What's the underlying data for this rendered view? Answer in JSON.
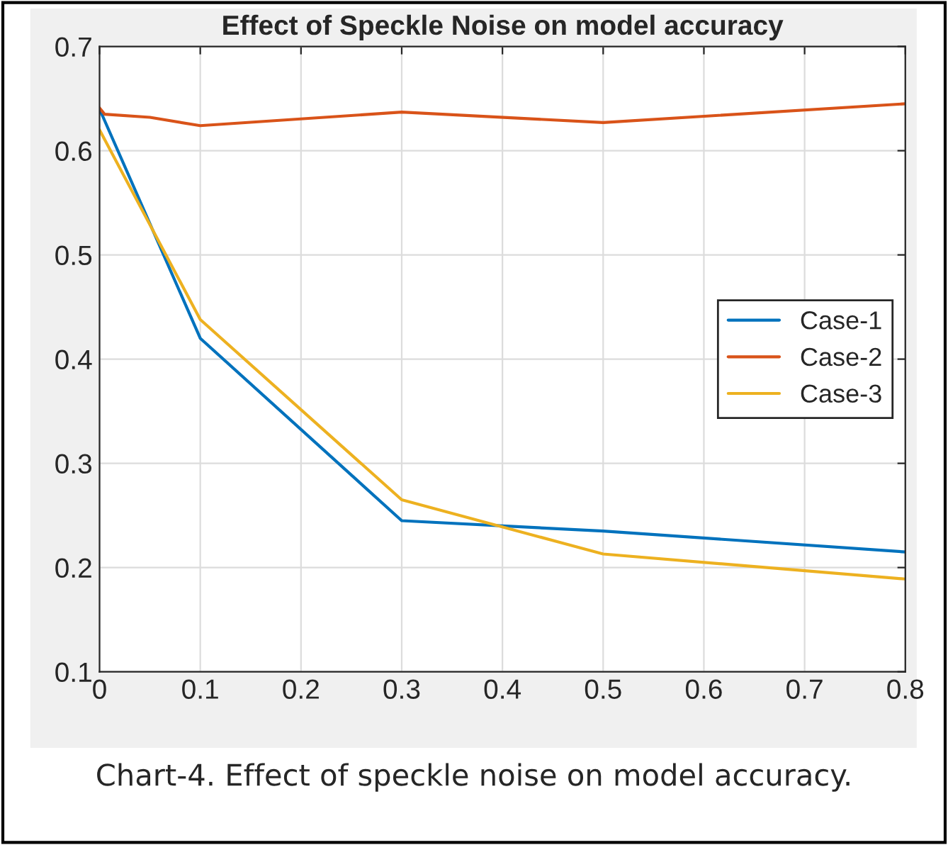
{
  "chart_data": {
    "type": "line",
    "title": "Effect of Speckle Noise on model accuracy",
    "xlim": [
      0,
      0.8
    ],
    "xticks": [
      0,
      0.1,
      0.2,
      0.3,
      0.4,
      0.5,
      0.6,
      0.7,
      0.8
    ],
    "ylim": [
      0.1,
      0.7
    ],
    "yticks": [
      0.1,
      0.2,
      0.3,
      0.4,
      0.5,
      0.6,
      0.7
    ],
    "grid": true,
    "legend": "right",
    "series": [
      {
        "name": "Case-1",
        "color": "#0072bd",
        "x": [
          0,
          0.1,
          0.3,
          0.5,
          0.8
        ],
        "values": [
          0.64,
          0.42,
          0.245,
          0.235,
          0.215
        ]
      },
      {
        "name": "Case-2",
        "color": "#d95319",
        "x": [
          0,
          0.005,
          0.05,
          0.1,
          0.3,
          0.5,
          0.8
        ],
        "values": [
          0.641,
          0.635,
          0.632,
          0.624,
          0.637,
          0.627,
          0.645
        ]
      },
      {
        "name": "Case-3",
        "color": "#edb120",
        "x": [
          0,
          0.1,
          0.3,
          0.5,
          0.8
        ],
        "values": [
          0.62,
          0.438,
          0.265,
          0.213,
          0.189
        ]
      }
    ],
    "annotations": [
      "Chart-4. Effect of speckle noise on model accuracy."
    ]
  }
}
